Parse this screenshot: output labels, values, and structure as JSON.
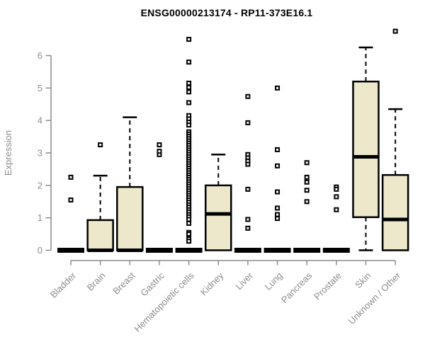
{
  "title": "ENSG00000213174 - RP11-373E16.1",
  "chart_data": {
    "type": "boxplot",
    "title": "ENSG00000213174 - RP11-373E16.1",
    "xlabel": "",
    "ylabel": "Expression",
    "ylim": [
      0,
      6
    ],
    "yticks": [
      0,
      1,
      2,
      3,
      4,
      5,
      6
    ],
    "grid": false,
    "legend": "none",
    "categories": [
      "Bladder",
      "Brain",
      "Breast",
      "Gastric",
      "Hematopoietic cells",
      "Kidney",
      "Liver",
      "Lung",
      "Pancreas",
      "Prostate",
      "Skin",
      "Unknown / Other"
    ],
    "boxes": [
      {
        "category": "Bladder",
        "q1": 0,
        "median": 0,
        "q3": 0,
        "whisker_low": 0,
        "whisker_high": 0,
        "outliers": [
          1.55,
          2.25
        ]
      },
      {
        "category": "Brain",
        "q1": 0,
        "median": 0,
        "q3": 0.93,
        "whisker_low": 0,
        "whisker_high": 2.3,
        "outliers": [
          3.25
        ]
      },
      {
        "category": "Breast",
        "q1": 0,
        "median": 0,
        "q3": 1.95,
        "whisker_low": 0,
        "whisker_high": 4.1,
        "outliers": []
      },
      {
        "category": "Gastric",
        "q1": 0,
        "median": 0,
        "q3": 0,
        "whisker_low": 0,
        "whisker_high": 0,
        "outliers": [
          2.95,
          3.05,
          3.25
        ]
      },
      {
        "category": "Hematopoietic cells",
        "q1": 0,
        "median": 0,
        "q3": 0,
        "whisker_low": 0,
        "whisker_high": 0,
        "outliers": [
          6.5,
          5.8,
          5.15,
          5.02,
          4.88,
          4.55,
          4.15,
          4.05,
          3.95,
          3.86,
          3.65,
          3.58,
          3.51,
          3.44,
          3.37,
          3.3,
          3.23,
          3.16,
          3.09,
          3.02,
          2.95,
          2.88,
          2.81,
          2.74,
          2.67,
          2.6,
          2.53,
          2.46,
          2.39,
          2.32,
          2.25,
          2.18,
          2.11,
          2.04,
          1.97,
          1.9,
          1.83,
          1.76,
          1.69,
          1.62,
          1.55,
          1.48,
          1.4,
          1.33,
          1.25,
          1.18,
          1.1,
          1.03,
          0.95,
          0.83,
          0.55,
          0.5,
          0.35,
          0.28
        ]
      },
      {
        "category": "Kidney",
        "q1": 0,
        "median": 1.12,
        "q3": 2.0,
        "whisker_low": 0,
        "whisker_high": 2.95,
        "outliers": []
      },
      {
        "category": "Liver",
        "q1": 0,
        "median": 0,
        "q3": 0,
        "whisker_low": 0,
        "whisker_high": 0,
        "outliers": [
          4.74,
          3.93,
          2.95,
          2.85,
          2.75,
          2.65,
          1.88,
          0.95,
          0.68
        ]
      },
      {
        "category": "Lung",
        "q1": 0,
        "median": 0,
        "q3": 0,
        "whisker_low": 0,
        "whisker_high": 0,
        "outliers": [
          5.0,
          3.1,
          2.6,
          1.8,
          1.3,
          1.1,
          0.98
        ]
      },
      {
        "category": "Pancreas",
        "q1": 0,
        "median": 0,
        "q3": 0,
        "whisker_low": 0,
        "whisker_high": 0,
        "outliers": [
          2.7,
          2.25,
          2.1,
          1.85,
          1.5
        ]
      },
      {
        "category": "Prostate",
        "q1": 0,
        "median": 0,
        "q3": 0,
        "whisker_low": 0,
        "whisker_high": 0,
        "outliers": [
          1.95,
          1.88,
          1.65,
          1.25
        ]
      },
      {
        "category": "Skin",
        "q1": 1.02,
        "median": 2.88,
        "q3": 5.2,
        "whisker_low": 0,
        "whisker_high": 6.25,
        "outliers": []
      },
      {
        "category": "Unknown / Other",
        "q1": 0,
        "median": 0.95,
        "q3": 2.32,
        "whisker_low": 0,
        "whisker_high": 4.35,
        "outliers": [
          6.75
        ]
      }
    ],
    "colors": {
      "box_fill": "#EDE8CB",
      "box_stroke": "#000000",
      "axis": "#8c8c8c",
      "tick_text": "#8c8c8c",
      "title_text": "#000000",
      "background": "#ffffff"
    }
  }
}
